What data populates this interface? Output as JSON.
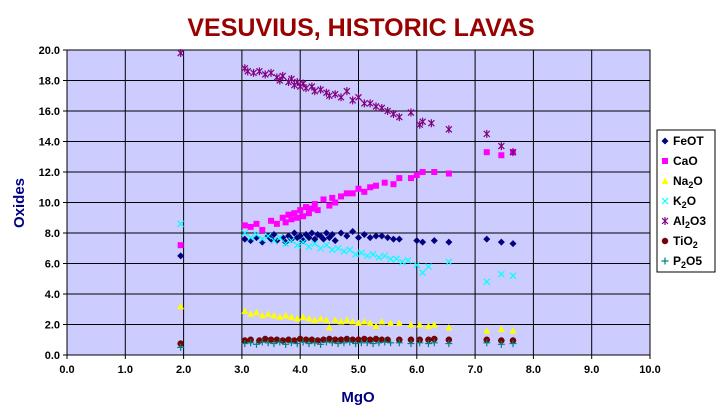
{
  "chart_data": {
    "type": "scatter",
    "title": "VESUVIUS, HISTORIC LAVAS",
    "xlabel": "MgO",
    "ylabel": "Oxides",
    "xlim": [
      0,
      10
    ],
    "ylim": [
      0,
      20
    ],
    "x_ticks": [
      "0.0",
      "1.0",
      "2.0",
      "3.0",
      "4.0",
      "5.0",
      "6.0",
      "7.0",
      "8.0",
      "9.0",
      "10.0"
    ],
    "y_ticks": [
      "0.0",
      "2.0",
      "4.0",
      "6.0",
      "8.0",
      "10.0",
      "12.0",
      "14.0",
      "16.0",
      "18.0",
      "20.0"
    ],
    "grid": true,
    "legend_position": "right",
    "plot_background": "#ccccff",
    "title_color": "#990000",
    "axis_label_color": "#000080",
    "series": [
      {
        "name": "FeOT",
        "legend_base": "FeOT",
        "legend_sub": "",
        "legend_after": "",
        "color": "#000080",
        "marker": "diamond",
        "points": [
          [
            1.95,
            6.5
          ],
          [
            3.05,
            7.6
          ],
          [
            3.15,
            7.5
          ],
          [
            3.25,
            7.7
          ],
          [
            3.35,
            7.4
          ],
          [
            3.45,
            7.8
          ],
          [
            3.5,
            7.6
          ],
          [
            3.55,
            7.9
          ],
          [
            3.6,
            7.5
          ],
          [
            3.7,
            7.7
          ],
          [
            3.75,
            7.4
          ],
          [
            3.8,
            7.8
          ],
          [
            3.85,
            7.6
          ],
          [
            3.9,
            8.0
          ],
          [
            3.95,
            7.7
          ],
          [
            4.0,
            7.8
          ],
          [
            4.05,
            7.5
          ],
          [
            4.1,
            7.9
          ],
          [
            4.15,
            7.7
          ],
          [
            4.2,
            8.0
          ],
          [
            4.25,
            7.6
          ],
          [
            4.3,
            7.9
          ],
          [
            4.35,
            7.8
          ],
          [
            4.4,
            7.6
          ],
          [
            4.45,
            8.0
          ],
          [
            4.5,
            7.7
          ],
          [
            4.55,
            7.9
          ],
          [
            4.6,
            7.5
          ],
          [
            4.7,
            8.0
          ],
          [
            4.8,
            7.8
          ],
          [
            4.9,
            8.1
          ],
          [
            5.0,
            7.7
          ],
          [
            5.1,
            7.9
          ],
          [
            5.2,
            7.7
          ],
          [
            5.3,
            7.8
          ],
          [
            5.4,
            7.8
          ],
          [
            5.5,
            7.7
          ],
          [
            5.6,
            7.6
          ],
          [
            5.7,
            7.6
          ],
          [
            6.0,
            7.5
          ],
          [
            6.1,
            7.4
          ],
          [
            6.3,
            7.5
          ],
          [
            6.55,
            7.4
          ],
          [
            7.2,
            7.6
          ],
          [
            7.45,
            7.4
          ],
          [
            7.65,
            7.3
          ]
        ]
      },
      {
        "name": "CaO",
        "legend_base": "CaO",
        "legend_sub": "",
        "legend_after": "",
        "color": "#ff00ff",
        "marker": "square",
        "points": [
          [
            1.95,
            7.2
          ],
          [
            3.05,
            8.5
          ],
          [
            3.15,
            8.4
          ],
          [
            3.25,
            8.6
          ],
          [
            3.35,
            8.2
          ],
          [
            3.5,
            8.8
          ],
          [
            3.6,
            8.6
          ],
          [
            3.7,
            9.0
          ],
          [
            3.75,
            8.7
          ],
          [
            3.8,
            9.2
          ],
          [
            3.85,
            8.9
          ],
          [
            3.9,
            9.3
          ],
          [
            3.95,
            9.0
          ],
          [
            4.0,
            9.5
          ],
          [
            4.05,
            9.1
          ],
          [
            4.1,
            9.7
          ],
          [
            4.15,
            9.3
          ],
          [
            4.2,
            9.6
          ],
          [
            4.25,
            9.9
          ],
          [
            4.3,
            9.5
          ],
          [
            4.4,
            10.2
          ],
          [
            4.5,
            9.8
          ],
          [
            4.55,
            10.3
          ],
          [
            4.6,
            10.0
          ],
          [
            4.7,
            10.4
          ],
          [
            4.8,
            10.6
          ],
          [
            4.9,
            10.6
          ],
          [
            5.0,
            10.9
          ],
          [
            5.1,
            10.7
          ],
          [
            5.2,
            11.0
          ],
          [
            5.3,
            11.1
          ],
          [
            5.45,
            11.3
          ],
          [
            5.6,
            11.2
          ],
          [
            5.7,
            11.6
          ],
          [
            5.9,
            11.6
          ],
          [
            6.0,
            11.8
          ],
          [
            6.1,
            12.0
          ],
          [
            6.3,
            12.0
          ],
          [
            6.55,
            11.9
          ],
          [
            7.2,
            13.3
          ],
          [
            7.45,
            13.1
          ],
          [
            7.65,
            13.3
          ]
        ]
      },
      {
        "name": "Na2O",
        "legend_base": "Na",
        "legend_sub": "2",
        "legend_after": "O",
        "color": "#ffff00",
        "marker": "triangle",
        "points": [
          [
            1.95,
            3.2
          ],
          [
            3.05,
            2.9
          ],
          [
            3.15,
            2.7
          ],
          [
            3.25,
            2.8
          ],
          [
            3.35,
            2.6
          ],
          [
            3.45,
            2.7
          ],
          [
            3.55,
            2.6
          ],
          [
            3.65,
            2.5
          ],
          [
            3.75,
            2.6
          ],
          [
            3.85,
            2.5
          ],
          [
            3.95,
            2.4
          ],
          [
            4.05,
            2.5
          ],
          [
            4.15,
            2.4
          ],
          [
            4.25,
            2.3
          ],
          [
            4.35,
            2.4
          ],
          [
            4.45,
            2.3
          ],
          [
            4.5,
            1.8
          ],
          [
            4.6,
            2.3
          ],
          [
            4.7,
            2.2
          ],
          [
            4.8,
            2.3
          ],
          [
            4.9,
            2.2
          ],
          [
            5.0,
            2.1
          ],
          [
            5.1,
            2.2
          ],
          [
            5.2,
            2.1
          ],
          [
            5.3,
            1.9
          ],
          [
            5.4,
            2.2
          ],
          [
            5.55,
            2.1
          ],
          [
            5.7,
            2.1
          ],
          [
            5.9,
            2.0
          ],
          [
            6.05,
            2.0
          ],
          [
            6.2,
            1.9
          ],
          [
            6.3,
            2.0
          ],
          [
            6.55,
            1.8
          ],
          [
            7.2,
            1.6
          ],
          [
            7.45,
            1.7
          ],
          [
            7.65,
            1.6
          ]
        ]
      },
      {
        "name": "K2O",
        "legend_base": "K",
        "legend_sub": "2",
        "legend_after": "O",
        "color": "#00ffff",
        "marker": "x",
        "points": [
          [
            1.95,
            8.6
          ],
          [
            3.05,
            8.0
          ],
          [
            3.15,
            7.7
          ],
          [
            3.25,
            7.9
          ],
          [
            3.35,
            7.6
          ],
          [
            3.45,
            7.8
          ],
          [
            3.55,
            7.5
          ],
          [
            3.65,
            7.7
          ],
          [
            3.75,
            7.3
          ],
          [
            3.85,
            7.5
          ],
          [
            3.95,
            7.2
          ],
          [
            4.05,
            7.4
          ],
          [
            4.15,
            7.1
          ],
          [
            4.25,
            7.3
          ],
          [
            4.35,
            7.0
          ],
          [
            4.45,
            7.2
          ],
          [
            4.55,
            6.9
          ],
          [
            4.65,
            7.0
          ],
          [
            4.75,
            6.8
          ],
          [
            4.85,
            6.9
          ],
          [
            4.95,
            6.6
          ],
          [
            5.05,
            6.7
          ],
          [
            5.15,
            6.5
          ],
          [
            5.25,
            6.6
          ],
          [
            5.35,
            6.4
          ],
          [
            5.45,
            6.5
          ],
          [
            5.55,
            6.3
          ],
          [
            5.65,
            6.3
          ],
          [
            5.75,
            6.1
          ],
          [
            5.85,
            6.2
          ],
          [
            6.0,
            5.9
          ],
          [
            6.1,
            5.4
          ],
          [
            6.2,
            5.8
          ],
          [
            6.55,
            6.1
          ],
          [
            7.2,
            4.8
          ],
          [
            7.45,
            5.3
          ],
          [
            7.65,
            5.2
          ]
        ]
      },
      {
        "name": "Al2O3",
        "legend_base": "Al",
        "legend_sub": "2",
        "legend_after": "O3",
        "color": "#800080",
        "marker": "star",
        "points": [
          [
            1.95,
            19.8
          ],
          [
            3.05,
            18.8
          ],
          [
            3.1,
            18.6
          ],
          [
            3.2,
            18.5
          ],
          [
            3.3,
            18.6
          ],
          [
            3.4,
            18.4
          ],
          [
            3.5,
            18.5
          ],
          [
            3.6,
            18.2
          ],
          [
            3.65,
            18.0
          ],
          [
            3.7,
            18.3
          ],
          [
            3.8,
            17.9
          ],
          [
            3.85,
            18.1
          ],
          [
            3.9,
            17.7
          ],
          [
            3.95,
            17.9
          ],
          [
            4.0,
            17.6
          ],
          [
            4.05,
            17.8
          ],
          [
            4.1,
            17.5
          ],
          [
            4.2,
            17.6
          ],
          [
            4.25,
            17.3
          ],
          [
            4.35,
            17.4
          ],
          [
            4.45,
            17.2
          ],
          [
            4.5,
            17.0
          ],
          [
            4.6,
            17.1
          ],
          [
            4.7,
            16.9
          ],
          [
            4.8,
            17.3
          ],
          [
            4.9,
            16.7
          ],
          [
            5.0,
            16.9
          ],
          [
            5.1,
            16.5
          ],
          [
            5.2,
            16.5
          ],
          [
            5.3,
            16.3
          ],
          [
            5.4,
            16.2
          ],
          [
            5.5,
            16.0
          ],
          [
            5.6,
            15.8
          ],
          [
            5.7,
            15.6
          ],
          [
            5.9,
            15.9
          ],
          [
            6.05,
            15.1
          ],
          [
            6.1,
            15.3
          ],
          [
            6.25,
            15.2
          ],
          [
            6.55,
            14.8
          ],
          [
            7.2,
            14.5
          ],
          [
            7.45,
            13.7
          ],
          [
            7.65,
            13.3
          ]
        ]
      },
      {
        "name": "TiO2",
        "legend_base": "TiO",
        "legend_sub": "2",
        "legend_after": "",
        "color": "#800000",
        "marker": "circle",
        "points": [
          [
            1.95,
            0.75
          ],
          [
            3.05,
            0.95
          ],
          [
            3.15,
            1.0
          ],
          [
            3.3,
            0.95
          ],
          [
            3.4,
            1.05
          ],
          [
            3.5,
            1.0
          ],
          [
            3.6,
            1.0
          ],
          [
            3.7,
            0.95
          ],
          [
            3.8,
            1.0
          ],
          [
            3.9,
            0.95
          ],
          [
            4.0,
            1.05
          ],
          [
            4.1,
            1.0
          ],
          [
            4.2,
            1.0
          ],
          [
            4.3,
            0.95
          ],
          [
            4.4,
            1.0
          ],
          [
            4.5,
            1.05
          ],
          [
            4.6,
            1.0
          ],
          [
            4.7,
            1.0
          ],
          [
            4.8,
            1.05
          ],
          [
            4.9,
            1.0
          ],
          [
            5.0,
            1.0
          ],
          [
            5.1,
            1.05
          ],
          [
            5.2,
            1.0
          ],
          [
            5.3,
            1.05
          ],
          [
            5.4,
            1.0
          ],
          [
            5.5,
            1.0
          ],
          [
            5.7,
            1.0
          ],
          [
            5.9,
            1.0
          ],
          [
            6.05,
            1.0
          ],
          [
            6.2,
            1.0
          ],
          [
            6.3,
            1.05
          ],
          [
            6.55,
            1.0
          ],
          [
            7.2,
            1.0
          ],
          [
            7.45,
            0.95
          ],
          [
            7.65,
            0.95
          ]
        ]
      },
      {
        "name": "P2O5",
        "legend_base": "P",
        "legend_sub": "2",
        "legend_after": "O5",
        "color": "#008080",
        "marker": "plus",
        "points": [
          [
            1.95,
            0.5
          ],
          [
            3.05,
            0.75
          ],
          [
            3.15,
            0.8
          ],
          [
            3.25,
            0.7
          ],
          [
            3.35,
            0.85
          ],
          [
            3.45,
            0.8
          ],
          [
            3.55,
            0.75
          ],
          [
            3.65,
            0.85
          ],
          [
            3.75,
            0.7
          ],
          [
            3.85,
            0.8
          ],
          [
            3.95,
            0.75
          ],
          [
            4.05,
            0.85
          ],
          [
            4.15,
            0.75
          ],
          [
            4.25,
            0.8
          ],
          [
            4.35,
            0.7
          ],
          [
            4.45,
            0.85
          ],
          [
            4.55,
            0.8
          ],
          [
            4.65,
            0.75
          ],
          [
            4.75,
            0.8
          ],
          [
            4.85,
            0.85
          ],
          [
            4.95,
            0.75
          ],
          [
            5.05,
            0.8
          ],
          [
            5.15,
            0.8
          ],
          [
            5.25,
            0.75
          ],
          [
            5.35,
            0.8
          ],
          [
            5.45,
            0.85
          ],
          [
            5.55,
            0.8
          ],
          [
            5.7,
            0.8
          ],
          [
            5.9,
            0.75
          ],
          [
            6.05,
            0.8
          ],
          [
            6.2,
            0.75
          ],
          [
            6.3,
            0.8
          ],
          [
            6.55,
            0.75
          ],
          [
            7.2,
            0.8
          ],
          [
            7.45,
            0.7
          ],
          [
            7.65,
            0.75
          ]
        ]
      }
    ]
  }
}
